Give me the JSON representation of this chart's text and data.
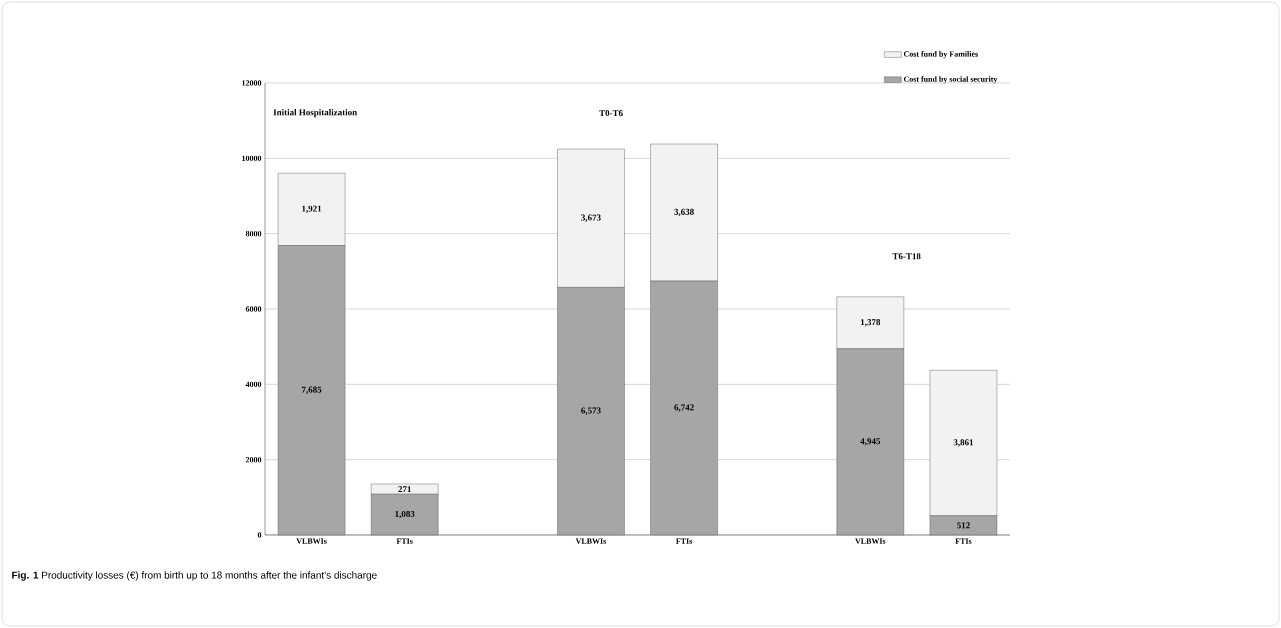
{
  "chart_data": {
    "type": "bar",
    "stacked": true,
    "categories": [
      "VLBWIs",
      "FTIs",
      null,
      "VLBWIs",
      "FTIs",
      null,
      "VLBWIs",
      "FTIs"
    ],
    "series": [
      {
        "name": "Cost fund by social security",
        "color": "#a6a6a6",
        "values": [
          7685,
          1083,
          null,
          6573,
          6742,
          null,
          4945,
          512
        ],
        "value_labels": [
          "7,685",
          "1,083",
          null,
          "6,573",
          "6,742",
          null,
          "4,945",
          "512"
        ]
      },
      {
        "name": "Cost fund by Families",
        "color": "#f2f2f2",
        "values": [
          1921,
          271,
          null,
          3673,
          3638,
          null,
          1378,
          3861
        ],
        "value_labels": [
          "1,921",
          "271",
          null,
          "3,673",
          "3,638",
          null,
          "1,378",
          "3,861"
        ]
      }
    ],
    "ylim": [
      0,
      12000
    ],
    "yticks": [
      0,
      2000,
      4000,
      6000,
      8000,
      10000,
      12000
    ],
    "grid": "y",
    "legend": "top right",
    "annotations": [
      "Initial Hospitalization",
      "T0-T6",
      "T6-T18",
      "**Fig. 1** Productivity losses (€) from birth up to 18 months after the infant’s discharge"
    ]
  }
}
